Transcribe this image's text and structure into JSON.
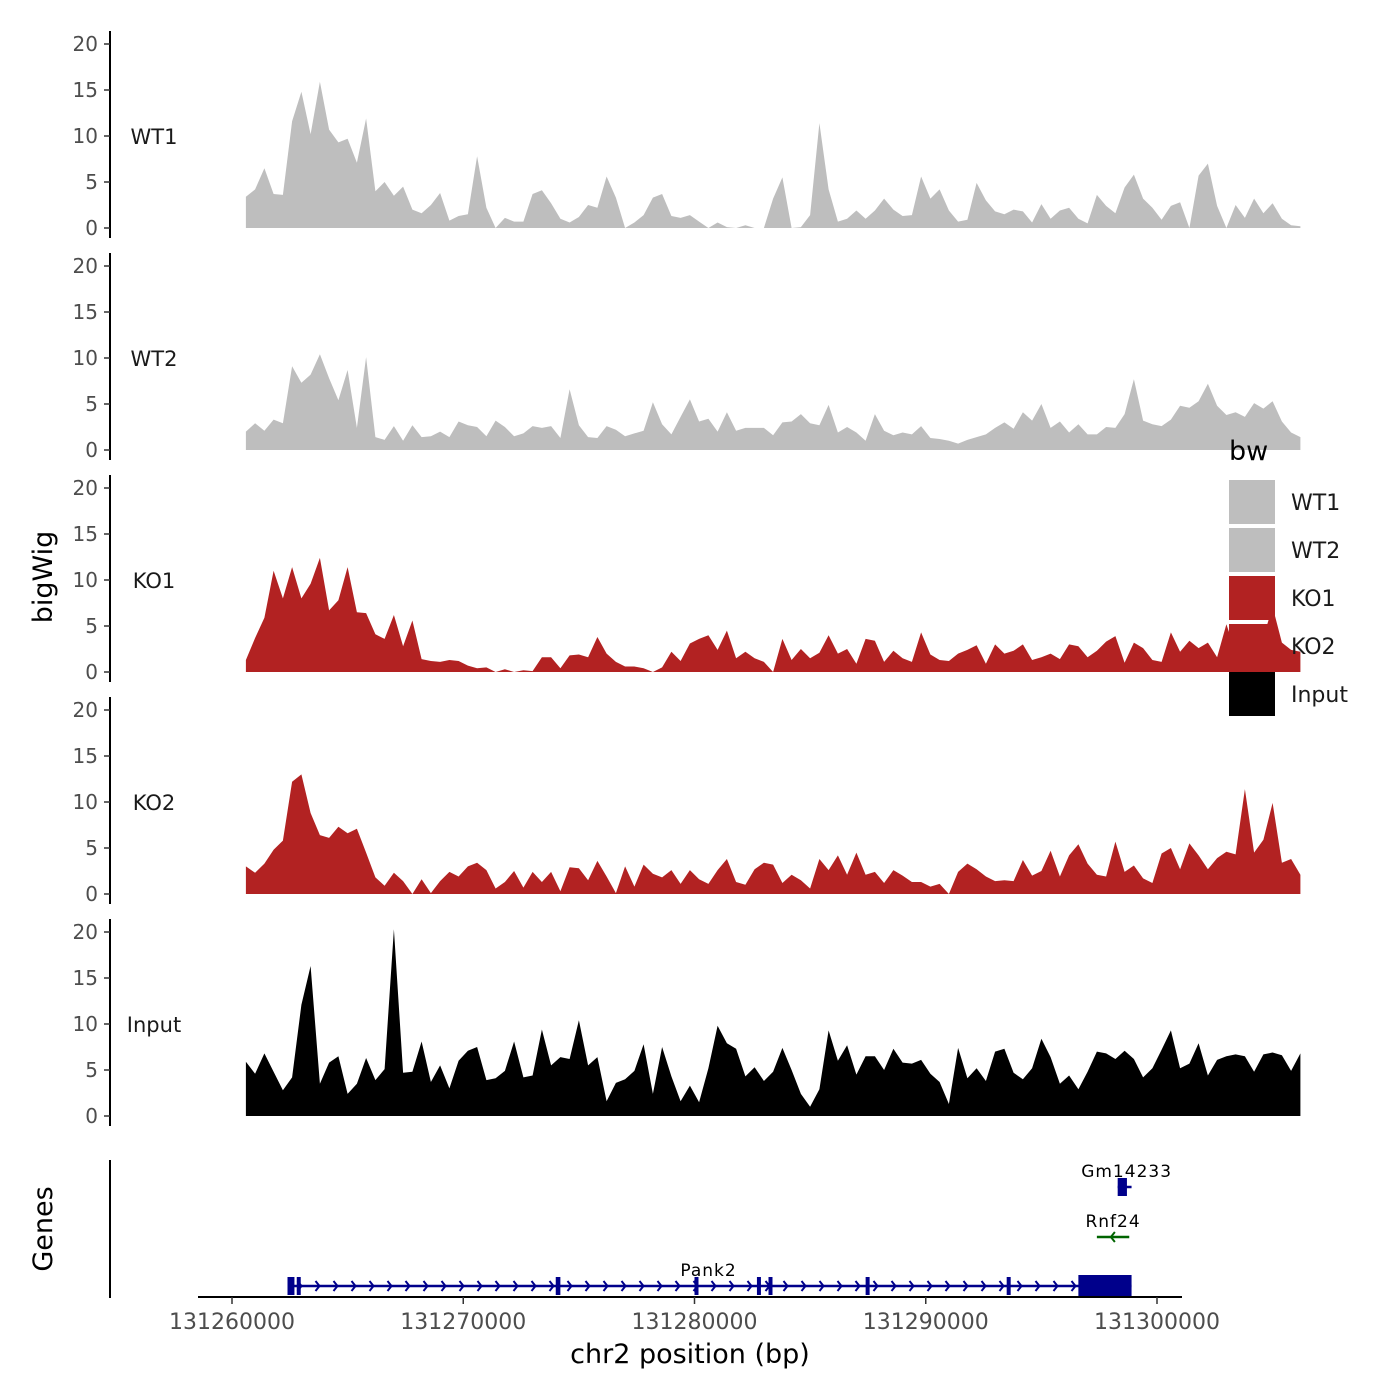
{
  "chart_data": {
    "type": "area",
    "title": "",
    "ylabel": "bigWig",
    "xlabel": "chr2 position (bp)",
    "gene_track_label": "Genes",
    "xlim": [
      131257000,
      131301000
    ],
    "x_ticks": [
      131260000,
      131270000,
      131280000,
      131290000,
      131300000
    ],
    "x_tick_labels": [
      "131260000",
      "131270000",
      "131280000",
      "131290000",
      "131300000"
    ],
    "ylim": [
      0,
      21
    ],
    "y_ticks": [
      0,
      5,
      10,
      15,
      20
    ],
    "y_tick_labels": [
      "0",
      "5",
      "10",
      "15",
      "20"
    ],
    "legend": {
      "title": "bw",
      "position": "right",
      "entries": [
        {
          "label": "WT1",
          "color": "#BEBEBE"
        },
        {
          "label": "WT2",
          "color": "#BEBEBE"
        },
        {
          "label": "KO1",
          "color": "#B22222"
        },
        {
          "label": "KO2",
          "color": "#B22222"
        },
        {
          "label": "Input",
          "color": "#000000"
        }
      ]
    },
    "series": [
      {
        "name": "WT1",
        "color": "#BEBEBE",
        "x_start": 131260600,
        "step": 400,
        "values": [
          3.4,
          4.2,
          6.5,
          3.7,
          3.6,
          11.6,
          14.8,
          10.2,
          15.9,
          10.7,
          9.3,
          9.7,
          7.1,
          11.9,
          4.0,
          5.0,
          3.5,
          4.5,
          2.0,
          1.6,
          2.5,
          3.8,
          0.8,
          1.3,
          1.5,
          7.8,
          2.2,
          0.0,
          1.1,
          0.7,
          0.7,
          3.7,
          4.1,
          2.7,
          1.0,
          0.6,
          1.2,
          2.5,
          2.2,
          5.6,
          3.3,
          0.0,
          0.6,
          1.4,
          3.3,
          3.7,
          1.3,
          1.1,
          1.4,
          0.7,
          0.0,
          0.6,
          0.1,
          0.0,
          0.3,
          0.0,
          0.0,
          3.2,
          5.5,
          0.0,
          0.1,
          1.4,
          11.4,
          4.2,
          0.7,
          1.0,
          1.9,
          1.0,
          1.9,
          3.2,
          2.0,
          1.3,
          1.4,
          5.6,
          3.2,
          4.2,
          1.9,
          0.7,
          0.9,
          4.9,
          3.0,
          1.8,
          1.5,
          2.0,
          1.8,
          0.6,
          2.6,
          1.0,
          1.9,
          2.2,
          1.0,
          0.5,
          3.6,
          2.4,
          1.6,
          4.4,
          5.8,
          3.2,
          2.2,
          0.9,
          2.4,
          2.8,
          0.0,
          5.7,
          7.0,
          2.4,
          0.0,
          2.5,
          1.1,
          3.2,
          1.6,
          2.7,
          1.0,
          0.3,
          0.2
        ]
      },
      {
        "name": "WT2",
        "color": "#BEBEBE",
        "x_start": 131260600,
        "step": 400,
        "values": [
          2.0,
          2.9,
          2.1,
          3.3,
          2.9,
          9.1,
          7.3,
          8.2,
          10.4,
          7.8,
          5.4,
          8.7,
          2.4,
          10.1,
          1.4,
          1.1,
          2.6,
          1.0,
          2.7,
          1.4,
          1.5,
          2.0,
          1.4,
          3.1,
          2.7,
          2.5,
          1.5,
          3.2,
          2.5,
          1.5,
          1.8,
          2.6,
          2.4,
          2.6,
          1.3,
          6.6,
          2.7,
          1.4,
          1.3,
          2.6,
          2.2,
          1.5,
          1.8,
          2.1,
          5.2,
          2.8,
          1.7,
          3.6,
          5.5,
          3.1,
          3.4,
          2.0,
          4.1,
          2.1,
          2.4,
          2.4,
          2.4,
          1.6,
          3.0,
          3.1,
          3.9,
          2.9,
          2.7,
          4.9,
          1.9,
          2.5,
          1.9,
          1.0,
          3.9,
          2.1,
          1.6,
          1.9,
          1.7,
          2.6,
          1.3,
          1.2,
          1.0,
          0.7,
          1.1,
          1.4,
          1.7,
          2.4,
          3.0,
          2.3,
          4.1,
          3.2,
          5.0,
          2.4,
          3.1,
          1.9,
          2.8,
          1.7,
          1.7,
          2.5,
          2.4,
          3.9,
          7.7,
          3.2,
          2.8,
          2.6,
          3.3,
          4.8,
          4.6,
          5.3,
          7.2,
          4.8,
          3.8,
          4.1,
          3.6,
          5.1,
          4.5,
          5.3,
          3.1,
          1.9,
          1.4
        ]
      },
      {
        "name": "KO1",
        "color": "#B22222",
        "x_start": 131260600,
        "step": 400,
        "values": [
          1.3,
          3.7,
          5.9,
          11.0,
          8.0,
          11.4,
          8.0,
          9.6,
          12.4,
          6.7,
          7.8,
          11.4,
          6.5,
          6.4,
          4.1,
          3.6,
          6.2,
          2.8,
          5.6,
          1.4,
          1.2,
          1.1,
          1.3,
          1.2,
          0.7,
          0.4,
          0.5,
          0.0,
          0.3,
          0.0,
          0.2,
          0.1,
          1.6,
          1.6,
          0.4,
          1.8,
          1.9,
          1.6,
          3.8,
          2.0,
          1.1,
          0.6,
          0.6,
          0.4,
          0.0,
          0.5,
          2.2,
          1.2,
          3.1,
          3.6,
          4.0,
          2.4,
          4.5,
          1.5,
          2.2,
          1.5,
          1.1,
          0.0,
          3.6,
          1.3,
          2.5,
          1.5,
          2.1,
          4.0,
          2.0,
          2.5,
          0.9,
          3.6,
          3.4,
          1.1,
          2.3,
          1.5,
          1.1,
          4.3,
          1.9,
          1.3,
          1.2,
          2.0,
          2.4,
          2.9,
          0.9,
          3.0,
          2.0,
          2.3,
          3.0,
          1.3,
          1.6,
          2.0,
          1.4,
          3.0,
          2.8,
          1.6,
          2.3,
          3.3,
          3.9,
          1.0,
          3.2,
          2.6,
          1.3,
          1.1,
          4.3,
          2.2,
          3.4,
          2.6,
          3.2,
          1.6,
          5.2,
          2.2,
          4.8,
          4.2,
          3.8,
          7.1,
          3.2,
          2.4,
          2.2
        ]
      },
      {
        "name": "KO2",
        "color": "#B22222",
        "x_start": 131260600,
        "step": 400,
        "values": [
          3.0,
          2.3,
          3.3,
          4.8,
          5.8,
          12.2,
          13.0,
          8.8,
          6.4,
          6.1,
          7.3,
          6.6,
          7.1,
          4.5,
          1.8,
          0.9,
          2.3,
          1.4,
          0.0,
          1.6,
          0.1,
          1.4,
          2.4,
          1.9,
          3.0,
          3.4,
          2.6,
          0.6,
          1.3,
          2.5,
          0.7,
          2.4,
          1.3,
          2.4,
          0.3,
          2.9,
          2.8,
          1.5,
          3.6,
          1.9,
          0.1,
          3.0,
          0.8,
          3.2,
          2.2,
          1.8,
          2.6,
          1.1,
          2.6,
          1.6,
          1.1,
          2.6,
          3.8,
          1.3,
          1.0,
          2.7,
          3.4,
          3.2,
          1.2,
          2.1,
          1.5,
          0.6,
          3.8,
          2.6,
          4.2,
          2.1,
          4.5,
          2.1,
          2.4,
          1.2,
          2.6,
          2.0,
          1.3,
          1.3,
          0.8,
          1.1,
          0.0,
          2.4,
          3.3,
          2.7,
          1.9,
          1.4,
          1.5,
          1.4,
          3.7,
          2.0,
          2.5,
          4.7,
          1.9,
          4.2,
          5.4,
          3.3,
          2.1,
          1.9,
          5.7,
          2.4,
          3.1,
          1.7,
          1.2,
          4.4,
          5.0,
          2.7,
          5.5,
          4.2,
          2.7,
          3.9,
          4.6,
          4.3,
          11.4,
          4.5,
          5.9,
          9.9,
          3.4,
          3.8,
          2.1
        ]
      },
      {
        "name": "Input",
        "color": "#000000",
        "x_start": 131260600,
        "step": 400,
        "values": [
          5.9,
          4.6,
          6.8,
          4.8,
          2.8,
          4.2,
          12.1,
          16.3,
          3.5,
          5.8,
          6.5,
          2.4,
          3.5,
          6.3,
          3.9,
          5.1,
          20.3,
          4.7,
          4.8,
          8.1,
          3.7,
          5.5,
          3.0,
          6.0,
          7.1,
          7.5,
          3.9,
          4.1,
          4.9,
          8.1,
          4.2,
          4.4,
          9.4,
          5.5,
          6.4,
          6.2,
          10.4,
          5.5,
          6.4,
          1.6,
          3.6,
          4.0,
          4.9,
          7.8,
          2.4,
          7.5,
          4.3,
          1.6,
          3.3,
          1.5,
          5.2,
          9.8,
          7.9,
          7.3,
          4.3,
          5.3,
          3.8,
          4.8,
          7.4,
          5.0,
          2.4,
          1.0,
          2.9,
          9.3,
          6.0,
          7.7,
          4.5,
          6.5,
          6.5,
          5.0,
          7.3,
          5.8,
          5.7,
          6.1,
          4.6,
          3.7,
          1.3,
          7.4,
          4.1,
          5.2,
          3.8,
          7.0,
          7.3,
          4.7,
          4.0,
          5.2,
          8.4,
          6.4,
          3.5,
          4.4,
          2.9,
          4.8,
          7.0,
          6.8,
          6.2,
          7.1,
          6.2,
          4.2,
          5.2,
          7.2,
          9.3,
          5.2,
          5.7,
          7.9,
          4.4,
          6.1,
          6.5,
          6.7,
          6.5,
          4.8,
          6.7,
          6.9,
          6.6,
          4.9,
          6.8
        ]
      }
    ],
    "genes": [
      {
        "name": "Pank2",
        "strand": "+",
        "color": "#00008B",
        "start": 131262400,
        "end": 131298900,
        "exons": [
          [
            131262400,
            131262700
          ],
          [
            131262800,
            131262900
          ],
          [
            131274000,
            131274200
          ],
          [
            131280000,
            131280100
          ],
          [
            131282700,
            131282800
          ],
          [
            131283200,
            131283300
          ],
          [
            131287400,
            131287500
          ],
          [
            131293500,
            131293600
          ],
          [
            131296600,
            131298900
          ]
        ]
      },
      {
        "name": "Rnf24",
        "strand": "-",
        "color": "#006400",
        "start": 131297400,
        "end": 131298800,
        "exons": []
      },
      {
        "name": "Gm14233",
        "strand": "+",
        "color": "#00008B",
        "start": 131298300,
        "end": 131298900,
        "exons": [
          [
            131298300,
            131298700
          ]
        ]
      }
    ]
  }
}
